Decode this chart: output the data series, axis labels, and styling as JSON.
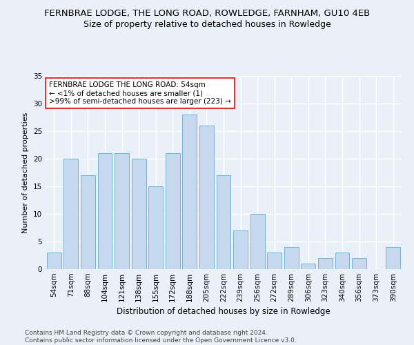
{
  "title": "FERNBRAE LODGE, THE LONG ROAD, ROWLEDGE, FARNHAM, GU10 4EB",
  "subtitle": "Size of property relative to detached houses in Rowledge",
  "xlabel": "Distribution of detached houses by size in Rowledge",
  "ylabel": "Number of detached properties",
  "categories": [
    "54sqm",
    "71sqm",
    "88sqm",
    "104sqm",
    "121sqm",
    "138sqm",
    "155sqm",
    "172sqm",
    "188sqm",
    "205sqm",
    "222sqm",
    "239sqm",
    "256sqm",
    "272sqm",
    "289sqm",
    "306sqm",
    "323sqm",
    "340sqm",
    "356sqm",
    "373sqm",
    "390sqm"
  ],
  "values": [
    3,
    20,
    17,
    21,
    21,
    20,
    15,
    21,
    28,
    26,
    17,
    7,
    10,
    3,
    4,
    1,
    2,
    3,
    2,
    0,
    4
  ],
  "bar_color": "#c5d8ed",
  "bar_edge_color": "#7aafce",
  "ylim": [
    0,
    35
  ],
  "yticks": [
    0,
    5,
    10,
    15,
    20,
    25,
    30,
    35
  ],
  "annotation_box_text": "FERNBRAE LODGE THE LONG ROAD: 54sqm\n← <1% of detached houses are smaller (1)\n>99% of semi-detached houses are larger (223) →",
  "footer_line1": "Contains HM Land Registry data © Crown copyright and database right 2024.",
  "footer_line2": "Contains public sector information licensed under the Open Government Licence v3.0.",
  "bg_color": "#eaf0f8",
  "plot_bg_color": "#eaf0f8",
  "grid_color": "#ffffff",
  "title_fontsize": 9.5,
  "subtitle_fontsize": 9,
  "xlabel_fontsize": 8.5,
  "ylabel_fontsize": 8,
  "tick_fontsize": 7.5,
  "footer_fontsize": 6.5,
  "ann_fontsize": 7.5
}
